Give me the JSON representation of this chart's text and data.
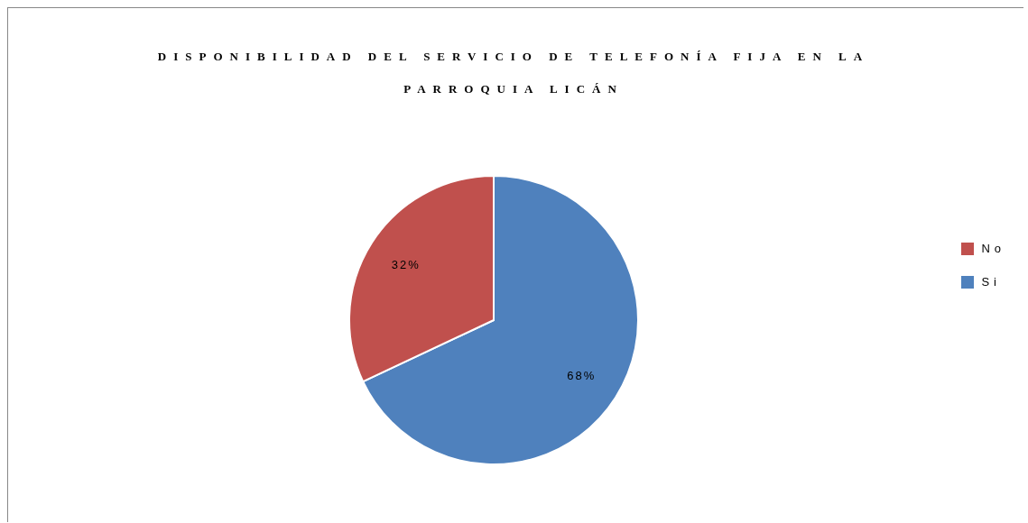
{
  "chart_data": {
    "type": "pie",
    "title": "DISPONIBILIDAD DEL SERVICIO DE TELEFONÍA FIJA EN LA PARROQUIA LICÁN",
    "categories": [
      "Si",
      "No"
    ],
    "values": [
      68,
      32
    ],
    "colors": [
      "#4f81bd",
      "#c0504d"
    ],
    "value_labels": [
      "68%",
      "32%"
    ],
    "legend": "right"
  }
}
